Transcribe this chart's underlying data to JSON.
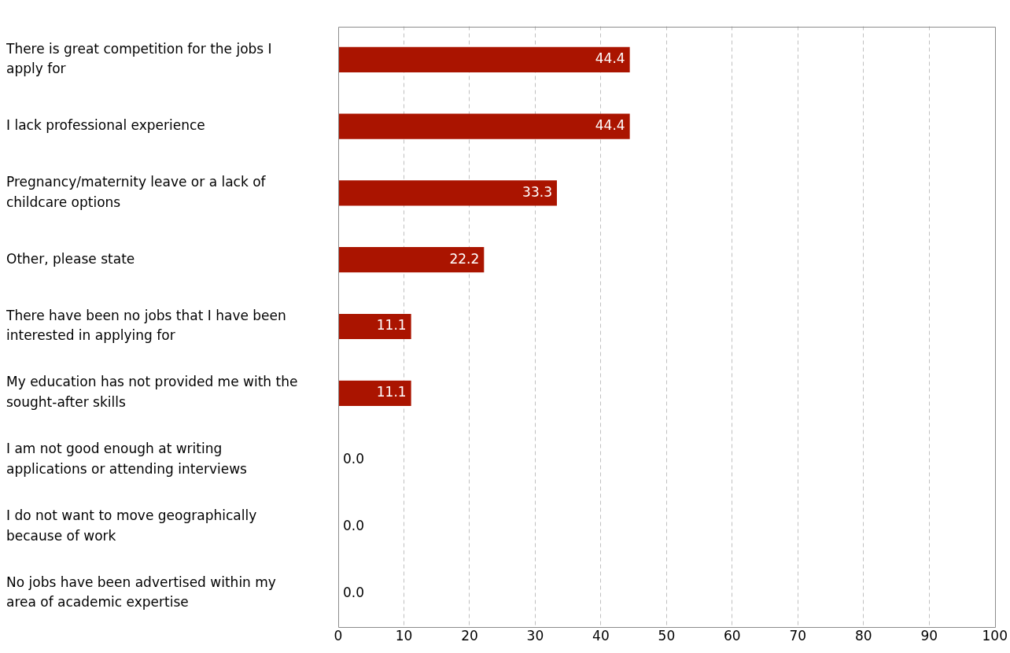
{
  "chart_data": {
    "type": "bar",
    "orientation": "horizontal",
    "categories": [
      "There is great competition for the jobs I apply for",
      "I lack professional experience",
      "Pregnancy/maternity leave or a lack of childcare options",
      "Other, please state",
      "There have been no jobs that I have been interested in applying for",
      "My education has not provided me with the sought-after skills",
      "I am not good enough at writing applications or attending interviews",
      "I do not want to move geographically because of work",
      "No jobs have been advertised within my area of academic expertise"
    ],
    "values": [
      44.4,
      44.4,
      33.3,
      22.2,
      11.1,
      11.1,
      0.0,
      0.0,
      0.0
    ],
    "color": "#aa1400",
    "xlim": [
      0,
      100
    ],
    "xticks": [
      0,
      10,
      20,
      30,
      40,
      50,
      60,
      70,
      80,
      90,
      100
    ],
    "value_labels": [
      "44.4",
      "44.4",
      "33.3",
      "22.2",
      "11.1",
      "11.1",
      "0.0",
      "0.0",
      "0.0"
    ],
    "grid": "x",
    "legend": false
  }
}
